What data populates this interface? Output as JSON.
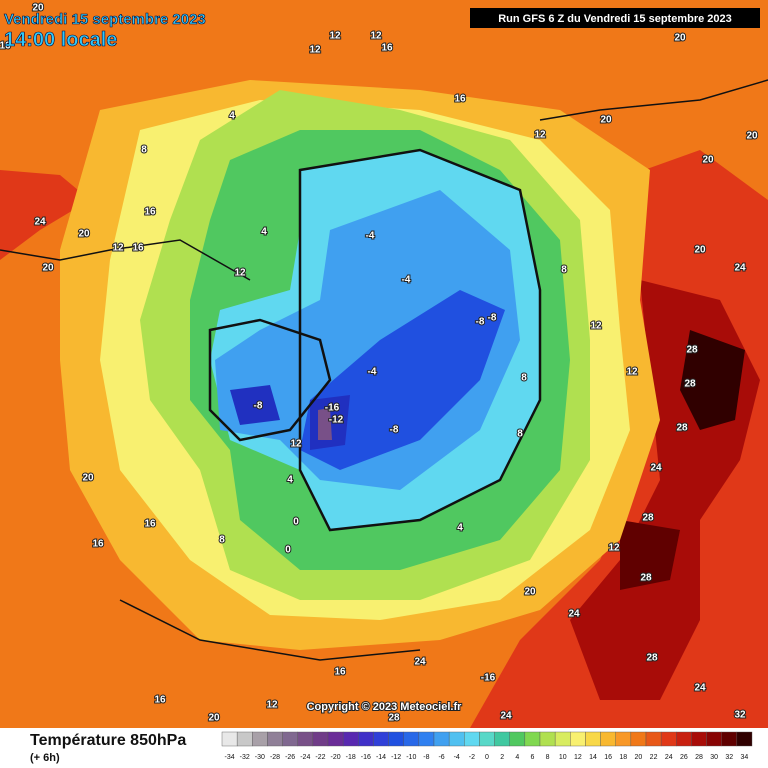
{
  "header": {
    "date": "Vendredi 15 septembre 2023",
    "time": "14:00 locale",
    "run": "Run GFS 6 Z du Vendredi 15 septembre 2023"
  },
  "copyright": "Copyright © 2023 Meteociel.fr",
  "footer": {
    "title": "Température 850hPa",
    "subtitle": "(+ 6h)"
  },
  "legend": {
    "values": [
      -34,
      -32,
      -30,
      -28,
      -26,
      -24,
      -22,
      -20,
      -18,
      -16,
      -14,
      -12,
      -10,
      -8,
      -6,
      -4,
      -2,
      0,
      2,
      4,
      6,
      8,
      10,
      12,
      14,
      16,
      18,
      20,
      22,
      24,
      26,
      28,
      30,
      32,
      34
    ],
    "colors": [
      "#e8e8e8",
      "#c8c8c8",
      "#a8a0a8",
      "#908098",
      "#806890",
      "#785088",
      "#703c88",
      "#6a2c98",
      "#5828b0",
      "#4030c8",
      "#3040d8",
      "#2050e0",
      "#2868e8",
      "#3080f0",
      "#40a0f0",
      "#50c0f0",
      "#60d8f0",
      "#58d8c8",
      "#40c8a0",
      "#50c860",
      "#80d850",
      "#b0e050",
      "#d8ec60",
      "#f8f070",
      "#f8d848",
      "#f8b830",
      "#f89828",
      "#f07818",
      "#e85818",
      "#e03818",
      "#c82010",
      "#a80c08",
      "#880404",
      "#600000",
      "#300000"
    ]
  },
  "map": {
    "labels": [
      "20",
      "16",
      "12",
      "12",
      "12",
      "16",
      "16",
      "12",
      "8",
      "4",
      "24",
      "20",
      "20",
      "12",
      "16",
      "16",
      "12",
      "4",
      "-4",
      "-4",
      "-8",
      "-8",
      "-4",
      "-8",
      "-8",
      "-16",
      "-12",
      "12",
      "8",
      "8",
      "8",
      "12",
      "12",
      "28",
      "28",
      "28",
      "24",
      "28",
      "28",
      "28",
      "24",
      "32",
      "24",
      "28",
      "24",
      "-16",
      "16",
      "12",
      "20",
      "16",
      "20",
      "16",
      "16",
      "8",
      "4",
      "0",
      "0",
      "4",
      "20",
      "24",
      "12",
      "20",
      "20",
      "20",
      "20",
      "20",
      "24"
    ]
  }
}
